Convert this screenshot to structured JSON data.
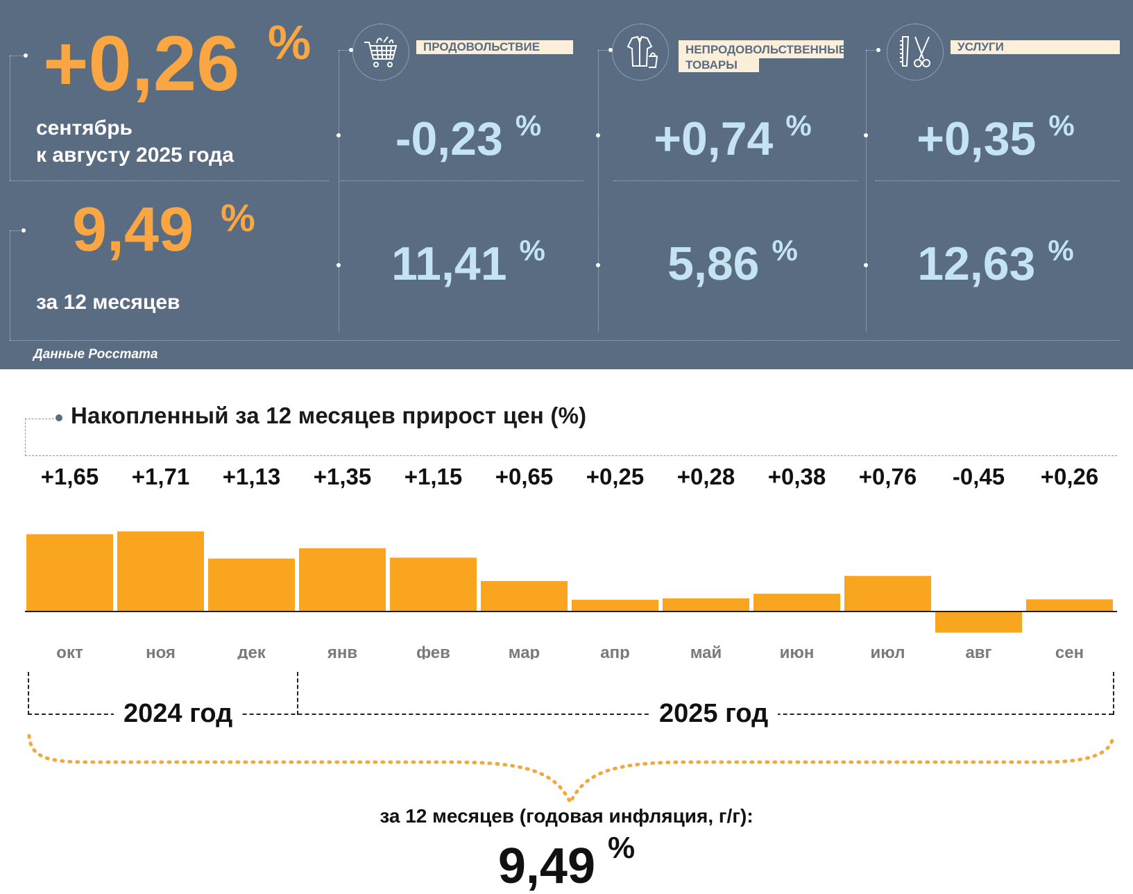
{
  "summary": {
    "month_change": "+0,26",
    "percent_sign": "%",
    "month_caption_line1": "сентябрь",
    "month_caption_line2": "к августу 2025 года",
    "annual_change": "9,49",
    "annual_caption": "за 12 месяцев",
    "source": "Данные Росстата"
  },
  "categories": [
    {
      "label": "ПРОДОВОЛЬСТВИЕ",
      "icon": "shopping-cart-icon",
      "month": "-0,23",
      "annual": "11,41"
    },
    {
      "label_line1": "НЕПРОДОВОЛЬСТВЕННЫЕ",
      "label_line2": "ТОВАРЫ",
      "icon": "clothing-bag-icon",
      "month": "+0,74",
      "annual": "5,86"
    },
    {
      "label": "УСЛУГИ",
      "icon": "comb-scissors-icon",
      "month": "+0,35",
      "annual": "12,63"
    }
  ],
  "chart_data": {
    "type": "bar",
    "title": "Накопленный за 12 месяцев прирост цен (%)",
    "categories": [
      "окт",
      "ноя",
      "дек",
      "янв",
      "фев",
      "мар",
      "апр",
      "май",
      "июн",
      "июл",
      "авг",
      "сен"
    ],
    "values": [
      1.65,
      1.71,
      1.13,
      1.35,
      1.15,
      0.65,
      0.25,
      0.28,
      0.38,
      0.76,
      -0.45,
      0.26
    ],
    "value_labels": [
      "+1,65",
      "+1,71",
      "+1,13",
      "+1,35",
      "+1,15",
      "+0,65",
      "+0,25",
      "+0,28",
      "+0,38",
      "+0,76",
      "-0,45",
      "+0,26"
    ],
    "years": [
      "2024 год",
      "2025 год"
    ],
    "bar_color": "#f9a51f",
    "annual_caption": "за 12 месяцев (годовая инфляция, г/г):",
    "annual_value": "9,49",
    "annual_unit": "%"
  },
  "colors": {
    "panel_bg": "#596c81",
    "accent_orange": "#f9a643",
    "value_blue": "#c5e4f3",
    "label_bg": "#fcefd9"
  }
}
